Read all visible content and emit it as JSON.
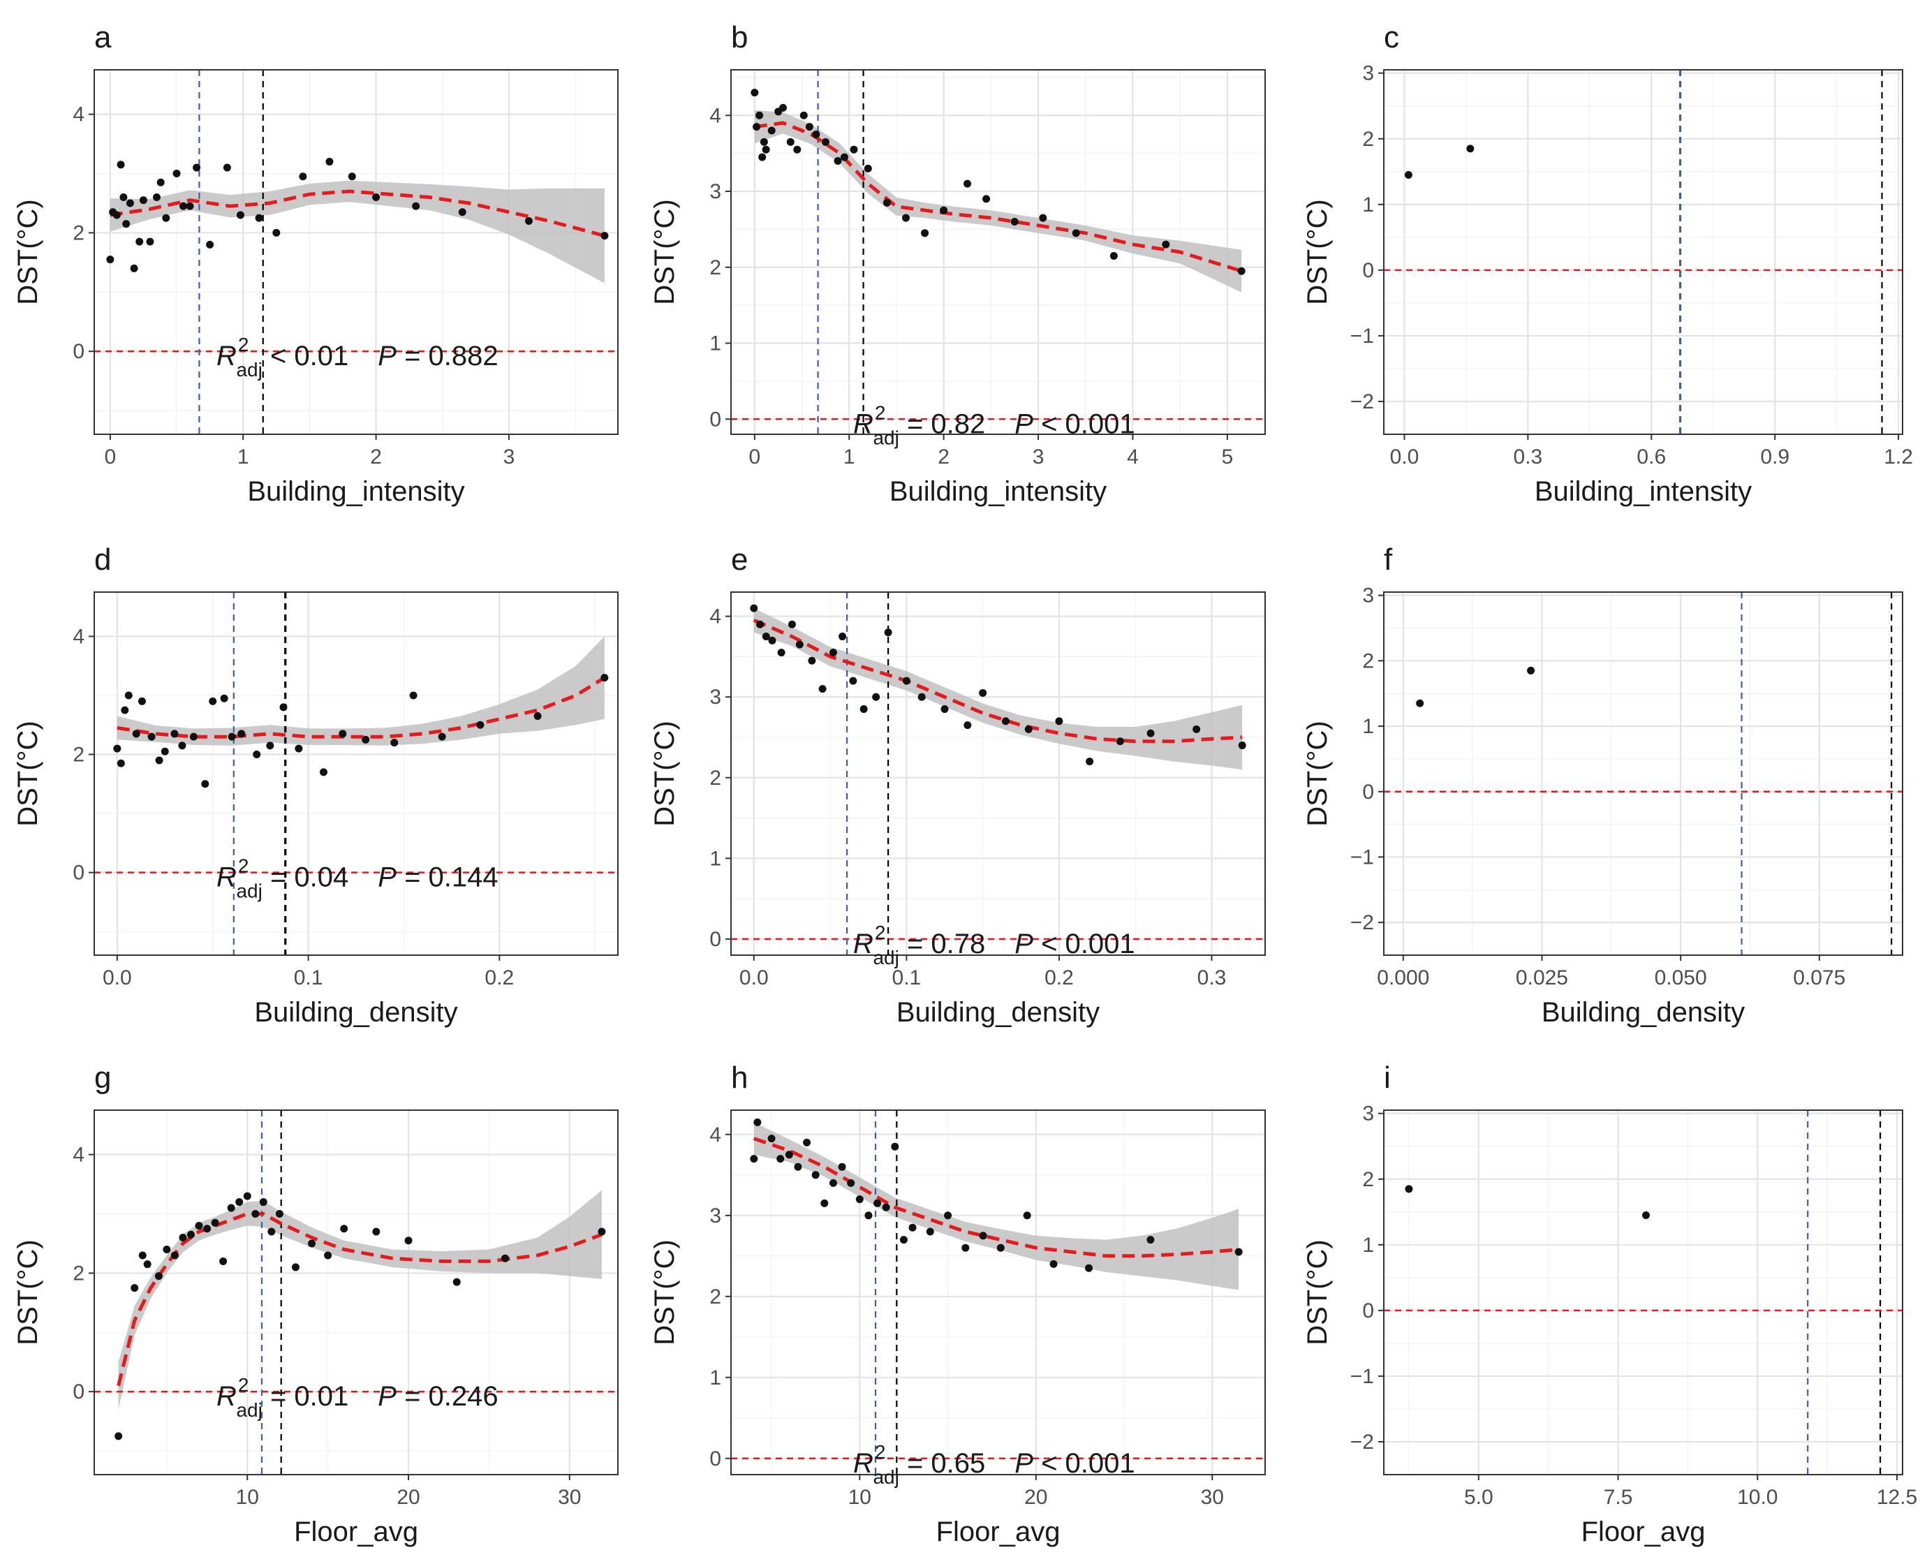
{
  "figure": {
    "axis_label_y": "DST(°C)",
    "colors": {
      "fit": "#e41a1c",
      "zero": "#e41a1c",
      "ci": "#bdbdbd",
      "threshold_blue": "#3a5ea8",
      "threshold_black": "#000000",
      "point": "#111111"
    }
  },
  "chart_data": [
    {
      "panel": "a",
      "type": "scatter",
      "xlabel": "Building_intensity",
      "ylabel": "DST(°C)",
      "xlim": [
        -0.12,
        3.82
      ],
      "ylim": [
        -1.4,
        4.75
      ],
      "xticks": [
        0,
        1,
        2,
        3
      ],
      "xtick_labels": [
        "0",
        "1",
        "2",
        "3"
      ],
      "yticks": [
        0,
        2,
        4
      ],
      "ytick_labels": [
        "0",
        "2",
        "4"
      ],
      "points_x": [
        0.0,
        0.02,
        0.05,
        0.08,
        0.1,
        0.12,
        0.15,
        0.18,
        0.22,
        0.25,
        0.3,
        0.35,
        0.38,
        0.42,
        0.5,
        0.55,
        0.6,
        0.65,
        0.75,
        0.88,
        0.98,
        1.12,
        1.25,
        1.45,
        1.65,
        1.82,
        2.0,
        2.3,
        2.65,
        3.15,
        3.72
      ],
      "points_y": [
        1.55,
        2.35,
        2.3,
        3.15,
        2.6,
        2.15,
        2.5,
        1.4,
        1.85,
        2.55,
        1.85,
        2.6,
        2.85,
        2.25,
        3.0,
        2.45,
        2.45,
        3.1,
        1.8,
        3.1,
        2.3,
        2.25,
        2.0,
        2.95,
        3.2,
        2.95,
        2.6,
        2.45,
        2.35,
        2.2,
        1.95
      ],
      "fit_x": [
        0,
        0.3,
        0.6,
        0.9,
        1.2,
        1.5,
        1.8,
        2.1,
        2.4,
        2.7,
        3.0,
        3.3,
        3.72
      ],
      "fit_y": [
        2.3,
        2.4,
        2.55,
        2.45,
        2.5,
        2.65,
        2.7,
        2.65,
        2.6,
        2.5,
        2.35,
        2.2,
        1.95
      ],
      "ci_halfwidth": [
        0.28,
        0.17,
        0.17,
        0.19,
        0.2,
        0.18,
        0.18,
        0.2,
        0.22,
        0.28,
        0.38,
        0.55,
        0.8
      ],
      "vline_blue": 0.67,
      "vline_black": 1.15,
      "annotation_r2_label": "R",
      "annotation_r2_sup": "2",
      "annotation_r2_sub": "adj",
      "annotation_r2_value": " < 0.01",
      "annotation_p_label": "P",
      "annotation_p_value": " = 0.882"
    },
    {
      "panel": "b",
      "type": "scatter",
      "xlabel": "Building_intensity",
      "ylabel": "DST(°C)",
      "xlim": [
        -0.25,
        5.4
      ],
      "ylim": [
        -0.2,
        4.6
      ],
      "xticks": [
        0,
        1,
        2,
        3,
        4,
        5
      ],
      "xtick_labels": [
        "0",
        "1",
        "2",
        "3",
        "4",
        "5"
      ],
      "yticks": [
        0,
        1,
        2,
        3,
        4
      ],
      "ytick_labels": [
        "0",
        "1",
        "2",
        "3",
        "4"
      ],
      "points_x": [
        0.0,
        0.02,
        0.05,
        0.08,
        0.1,
        0.12,
        0.18,
        0.25,
        0.3,
        0.38,
        0.45,
        0.52,
        0.58,
        0.65,
        0.75,
        0.88,
        0.95,
        1.05,
        1.2,
        1.4,
        1.6,
        1.8,
        2.0,
        2.25,
        2.45,
        2.75,
        3.05,
        3.4,
        3.8,
        4.35,
        5.15
      ],
      "points_y": [
        4.3,
        3.85,
        4.0,
        3.45,
        3.65,
        3.55,
        3.8,
        4.05,
        4.1,
        3.65,
        3.55,
        4.0,
        3.85,
        3.75,
        3.65,
        3.4,
        3.45,
        3.55,
        3.3,
        2.85,
        2.65,
        2.45,
        2.75,
        3.1,
        2.9,
        2.6,
        2.65,
        2.45,
        2.15,
        2.3,
        1.95
      ],
      "fit_x": [
        0,
        0.3,
        0.6,
        0.9,
        1.2,
        1.5,
        1.8,
        2.1,
        2.5,
        3.0,
        3.5,
        4.0,
        4.5,
        5.15
      ],
      "fit_y": [
        3.85,
        3.9,
        3.75,
        3.5,
        3.1,
        2.8,
        2.75,
        2.7,
        2.65,
        2.55,
        2.45,
        2.3,
        2.2,
        1.95
      ],
      "ci_halfwidth": [
        0.22,
        0.14,
        0.13,
        0.13,
        0.13,
        0.12,
        0.1,
        0.1,
        0.1,
        0.1,
        0.1,
        0.12,
        0.15,
        0.28
      ],
      "vline_blue": 0.67,
      "vline_black": 1.15,
      "annotation_r2_label": "R",
      "annotation_r2_sup": "2",
      "annotation_r2_sub": "adj",
      "annotation_r2_value": " = 0.82",
      "annotation_p_label": "P",
      "annotation_p_value": " < 0.001"
    },
    {
      "panel": "c",
      "type": "scatter",
      "xlabel": "Building_intensity",
      "ylabel": "DST(°C)",
      "xlim": [
        -0.05,
        1.21
      ],
      "ylim": [
        -2.5,
        3.05
      ],
      "xticks": [
        0.0,
        0.3,
        0.6,
        0.9,
        1.2
      ],
      "xtick_labels": [
        "0.0",
        "0.3",
        "0.6",
        "0.9",
        "1.2"
      ],
      "yticks": [
        -2,
        -1,
        0,
        1,
        2,
        3
      ],
      "ytick_labels": [
        "−2",
        "−1",
        "0",
        "1",
        "2",
        "3"
      ],
      "points_x": [
        0.01,
        0.16
      ],
      "points_y": [
        1.45,
        1.85
      ],
      "vline_blue": 0.67,
      "vline_black": 1.16
    },
    {
      "panel": "d",
      "type": "scatter",
      "xlabel": "Building_density",
      "ylabel": "DST(°C)",
      "xlim": [
        -0.012,
        0.262
      ],
      "ylim": [
        -1.4,
        4.75
      ],
      "xticks": [
        0.0,
        0.1,
        0.2
      ],
      "xtick_labels": [
        "0.0",
        "0.1",
        "0.2"
      ],
      "yticks": [
        0,
        2,
        4
      ],
      "ytick_labels": [
        "0",
        "2",
        "4"
      ],
      "points_x": [
        0.0,
        0.002,
        0.004,
        0.006,
        0.01,
        0.013,
        0.018,
        0.022,
        0.025,
        0.03,
        0.034,
        0.04,
        0.046,
        0.05,
        0.056,
        0.06,
        0.065,
        0.073,
        0.08,
        0.087,
        0.095,
        0.108,
        0.118,
        0.13,
        0.145,
        0.155,
        0.17,
        0.19,
        0.22,
        0.255
      ],
      "points_y": [
        2.1,
        1.85,
        2.75,
        3.0,
        2.35,
        2.9,
        2.3,
        1.9,
        2.05,
        2.35,
        2.15,
        2.3,
        1.5,
        2.9,
        2.95,
        2.3,
        2.35,
        2.0,
        2.15,
        2.8,
        2.1,
        1.7,
        2.35,
        2.25,
        2.2,
        3.0,
        2.3,
        2.5,
        2.65,
        3.3
      ],
      "fit_x": [
        0.0,
        0.02,
        0.04,
        0.06,
        0.08,
        0.1,
        0.12,
        0.14,
        0.16,
        0.18,
        0.2,
        0.22,
        0.24,
        0.255
      ],
      "fit_y": [
        2.45,
        2.35,
        2.3,
        2.3,
        2.35,
        2.3,
        2.3,
        2.3,
        2.35,
        2.45,
        2.6,
        2.75,
        3.0,
        3.3
      ],
      "ci_halfwidth": [
        0.2,
        0.14,
        0.14,
        0.15,
        0.15,
        0.14,
        0.14,
        0.15,
        0.17,
        0.2,
        0.25,
        0.35,
        0.5,
        0.7
      ],
      "vline_blue": 0.061,
      "vline_black": 0.088,
      "annotation_r2_label": "R",
      "annotation_r2_sup": "2",
      "annotation_r2_sub": "adj",
      "annotation_r2_value": " = 0.04",
      "annotation_p_label": "P",
      "annotation_p_value": " = 0.144"
    },
    {
      "panel": "e",
      "type": "scatter",
      "xlabel": "Building_density",
      "ylabel": "DST(°C)",
      "xlim": [
        -0.015,
        0.335
      ],
      "ylim": [
        -0.2,
        4.3
      ],
      "xticks": [
        0.0,
        0.1,
        0.2,
        0.3
      ],
      "xtick_labels": [
        "0.0",
        "0.1",
        "0.2",
        "0.3"
      ],
      "yticks": [
        0,
        1,
        2,
        3,
        4
      ],
      "ytick_labels": [
        "0",
        "1",
        "2",
        "3",
        "4"
      ],
      "points_x": [
        0.0,
        0.004,
        0.008,
        0.012,
        0.018,
        0.025,
        0.03,
        0.038,
        0.045,
        0.052,
        0.058,
        0.065,
        0.072,
        0.08,
        0.088,
        0.1,
        0.11,
        0.125,
        0.14,
        0.15,
        0.165,
        0.18,
        0.2,
        0.22,
        0.24,
        0.26,
        0.29,
        0.32
      ],
      "points_y": [
        4.1,
        3.9,
        3.75,
        3.7,
        3.55,
        3.9,
        3.65,
        3.45,
        3.1,
        3.55,
        3.75,
        3.2,
        2.85,
        3.0,
        3.8,
        3.2,
        3.0,
        2.85,
        2.65,
        3.05,
        2.7,
        2.6,
        2.7,
        2.2,
        2.45,
        2.55,
        2.6,
        2.4
      ],
      "fit_x": [
        0.0,
        0.025,
        0.05,
        0.075,
        0.1,
        0.125,
        0.15,
        0.175,
        0.2,
        0.225,
        0.25,
        0.275,
        0.3,
        0.32
      ],
      "fit_y": [
        3.95,
        3.75,
        3.5,
        3.35,
        3.2,
        3.0,
        2.8,
        2.65,
        2.55,
        2.48,
        2.45,
        2.45,
        2.48,
        2.5
      ],
      "ci_halfwidth": [
        0.15,
        0.12,
        0.12,
        0.12,
        0.12,
        0.12,
        0.12,
        0.12,
        0.13,
        0.15,
        0.18,
        0.25,
        0.33,
        0.4
      ],
      "vline_blue": 0.061,
      "vline_black": 0.088,
      "annotation_r2_label": "R",
      "annotation_r2_sup": "2",
      "annotation_r2_sub": "adj",
      "annotation_r2_value": " = 0.78",
      "annotation_p_label": "P",
      "annotation_p_value": " < 0.001"
    },
    {
      "panel": "f",
      "type": "scatter",
      "xlabel": "Building_density",
      "ylabel": "DST(°C)",
      "xlim": [
        -0.0035,
        0.09
      ],
      "ylim": [
        -2.5,
        3.05
      ],
      "xticks": [
        0.0,
        0.025,
        0.05,
        0.075
      ],
      "xtick_labels": [
        "0.000",
        "0.025",
        "0.050",
        "0.075"
      ],
      "yticks": [
        -2,
        -1,
        0,
        1,
        2,
        3
      ],
      "ytick_labels": [
        "−2",
        "−1",
        "0",
        "1",
        "2",
        "3"
      ],
      "points_x": [
        0.003,
        0.023
      ],
      "points_y": [
        1.35,
        1.85
      ],
      "vline_blue": 0.061,
      "vline_black": 0.088
    },
    {
      "panel": "g",
      "type": "scatter",
      "xlabel": "Floor_avg",
      "ylabel": "DST(°C)",
      "xlim": [
        0.5,
        33.0
      ],
      "ylim": [
        -1.4,
        4.75
      ],
      "xticks": [
        10,
        20,
        30
      ],
      "xtick_labels": [
        "10",
        "20",
        "30"
      ],
      "yticks": [
        0,
        2,
        4
      ],
      "ytick_labels": [
        "0",
        "2",
        "4"
      ],
      "points_x": [
        2.0,
        3.0,
        3.5,
        3.8,
        4.5,
        5.0,
        5.5,
        6.0,
        6.5,
        7.0,
        7.5,
        8.0,
        8.5,
        9.0,
        9.5,
        10.0,
        10.5,
        11.0,
        11.5,
        12.0,
        13.0,
        14.0,
        15.0,
        16.0,
        18.0,
        20.0,
        23.0,
        26.0,
        32.0
      ],
      "points_y": [
        -0.75,
        1.75,
        2.3,
        2.15,
        1.95,
        2.4,
        2.3,
        2.6,
        2.65,
        2.8,
        2.75,
        2.85,
        2.2,
        3.1,
        3.2,
        3.3,
        3.0,
        3.2,
        2.7,
        3.0,
        2.1,
        2.5,
        2.3,
        2.75,
        2.7,
        2.55,
        1.85,
        2.25,
        2.7
      ],
      "fit_x": [
        2.0,
        3.0,
        4.0,
        5.0,
        6.0,
        7.0,
        8.0,
        9.0,
        10.0,
        11.0,
        12.0,
        14.0,
        16.0,
        19.0,
        22.0,
        25.0,
        28.0,
        30.0,
        32.0
      ],
      "fit_y": [
        0.1,
        1.2,
        1.75,
        2.15,
        2.5,
        2.7,
        2.8,
        2.9,
        3.0,
        3.0,
        2.85,
        2.6,
        2.4,
        2.25,
        2.2,
        2.2,
        2.3,
        2.45,
        2.65
      ],
      "ci_halfwidth": [
        0.4,
        0.25,
        0.18,
        0.15,
        0.15,
        0.15,
        0.15,
        0.17,
        0.2,
        0.22,
        0.2,
        0.17,
        0.15,
        0.15,
        0.17,
        0.2,
        0.3,
        0.5,
        0.75
      ],
      "vline_blue": 10.9,
      "vline_black": 12.1,
      "annotation_r2_label": "R",
      "annotation_r2_sup": "2",
      "annotation_r2_sub": "adj",
      "annotation_r2_value": " = 0.01",
      "annotation_p_label": "P",
      "annotation_p_value": " = 0.246"
    },
    {
      "panel": "h",
      "type": "scatter",
      "xlabel": "Floor_avg",
      "ylabel": "DST(°C)",
      "xlim": [
        2.7,
        33.0
      ],
      "ylim": [
        -0.2,
        4.3
      ],
      "xticks": [
        10,
        20,
        30
      ],
      "xtick_labels": [
        "10",
        "20",
        "30"
      ],
      "yticks": [
        0,
        1,
        2,
        3,
        4
      ],
      "ytick_labels": [
        "0",
        "1",
        "2",
        "3",
        "4"
      ],
      "points_x": [
        4.0,
        4.2,
        5.0,
        5.5,
        6.0,
        6.5,
        7.0,
        7.5,
        8.0,
        8.5,
        9.0,
        9.5,
        10.0,
        10.5,
        11.0,
        11.5,
        12.0,
        12.5,
        13.0,
        14.0,
        15.0,
        16.0,
        17.0,
        18.0,
        19.5,
        21.0,
        23.0,
        26.5,
        31.5
      ],
      "points_y": [
        3.7,
        4.15,
        3.95,
        3.7,
        3.75,
        3.6,
        3.9,
        3.5,
        3.15,
        3.4,
        3.6,
        3.4,
        3.2,
        3.0,
        3.15,
        3.1,
        3.85,
        2.7,
        2.85,
        2.8,
        3.0,
        2.6,
        2.75,
        2.6,
        3.0,
        2.4,
        2.35,
        2.7,
        2.55
      ],
      "fit_x": [
        4.0,
        6.0,
        8.0,
        10.0,
        12.0,
        14.0,
        16.0,
        18.0,
        20.0,
        22.0,
        24.0,
        26.0,
        28.0,
        30.0,
        31.5
      ],
      "fit_y": [
        3.95,
        3.8,
        3.6,
        3.35,
        3.1,
        2.95,
        2.8,
        2.7,
        2.6,
        2.55,
        2.5,
        2.5,
        2.52,
        2.55,
        2.58
      ],
      "ci_halfwidth": [
        0.2,
        0.14,
        0.12,
        0.12,
        0.12,
        0.12,
        0.12,
        0.13,
        0.15,
        0.17,
        0.2,
        0.25,
        0.32,
        0.42,
        0.5
      ],
      "vline_blue": 10.9,
      "vline_black": 12.1,
      "annotation_r2_label": "R",
      "annotation_r2_sup": "2",
      "annotation_r2_sub": "adj",
      "annotation_r2_value": " = 0.65",
      "annotation_p_label": "P",
      "annotation_p_value": " < 0.001"
    },
    {
      "panel": "i",
      "type": "scatter",
      "xlabel": "Floor_avg",
      "ylabel": "DST(°C)",
      "xlim": [
        3.3,
        12.6
      ],
      "ylim": [
        -2.5,
        3.05
      ],
      "xticks": [
        5.0,
        7.5,
        10.0,
        12.5
      ],
      "xtick_labels": [
        "5.0",
        "7.5",
        "10.0",
        "12.5"
      ],
      "yticks": [
        -2,
        -1,
        0,
        1,
        2,
        3
      ],
      "ytick_labels": [
        "−2",
        "−1",
        "0",
        "1",
        "2",
        "3"
      ],
      "points_x": [
        3.75,
        8.0
      ],
      "points_y": [
        1.85,
        1.45
      ],
      "vline_blue": 10.9,
      "vline_black": 12.2
    }
  ]
}
